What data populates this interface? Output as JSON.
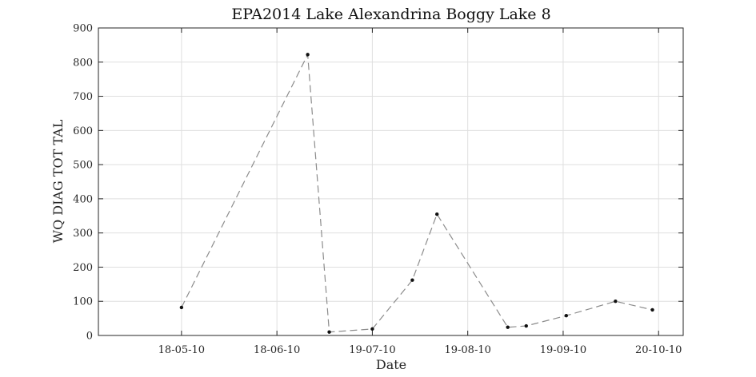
{
  "chart_data": {
    "type": "line",
    "title": "EPA2014 Lake Alexandrina Boggy Lake 8",
    "xlabel": "Date",
    "ylabel": "WQ DIAG TOT TAL",
    "ylim": [
      0,
      900
    ],
    "yticks": [
      0,
      100,
      200,
      300,
      400,
      500,
      600,
      700,
      800,
      900
    ],
    "xlim": [
      "2010-04-21",
      "2010-10-28"
    ],
    "xticks": [
      {
        "date": "2010-05-18",
        "label": "18-05-10"
      },
      {
        "date": "2010-06-18",
        "label": "18-06-10"
      },
      {
        "date": "2010-07-19",
        "label": "19-07-10"
      },
      {
        "date": "2010-08-19",
        "label": "19-08-10"
      },
      {
        "date": "2010-09-19",
        "label": "19-09-10"
      },
      {
        "date": "2010-10-20",
        "label": "20-10-10"
      }
    ],
    "grid": true,
    "series": [
      {
        "line_style": "dashed",
        "line_color": "#8c8c8c",
        "marker_color": "#111111",
        "x": [
          "2010-05-18",
          "2010-06-28",
          "2010-07-05",
          "2010-07-19",
          "2010-08-01",
          "2010-08-09",
          "2010-09-01",
          "2010-09-07",
          "2010-09-20",
          "2010-10-06",
          "2010-10-18"
        ],
        "y": [
          82,
          822,
          10,
          19,
          162,
          355,
          24,
          28,
          58,
          100,
          75
        ]
      }
    ]
  }
}
